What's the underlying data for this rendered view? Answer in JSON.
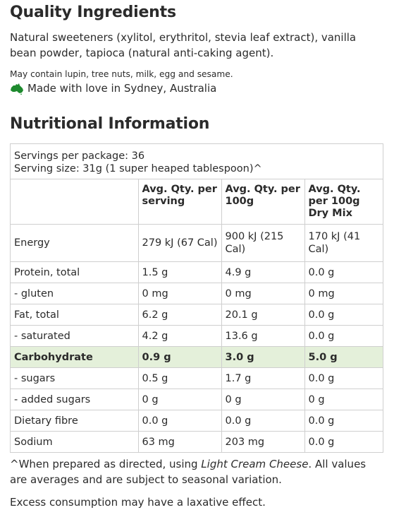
{
  "quality": {
    "title": "Quality Ingredients",
    "ingredients": "Natural sweeteners (xylitol, erythritol, stevia leaf extract), vanilla bean powder, tapioca (natural anti-caking agent).",
    "allergens": "May contain lupin, tree nuts, milk, egg and sesame.",
    "made_in": "Made with love in Sydney, Australia",
    "made_icon": "australia-map-icon",
    "accent_color": "#1e8a2e"
  },
  "nutrition": {
    "title": "Nutritional Information",
    "servings_per_package": "Servings per package: 36",
    "serving_size": "Serving size: 31g (1 super heaped tablespoon)^",
    "headers": [
      "",
      "Avg. Qty. per serving",
      "Avg. Qty. per 100g",
      "Avg. Qty. per 100g Dry Mix"
    ],
    "rows": [
      [
        "Energy",
        "279 kJ (67 Cal)",
        "900 kJ (215 Cal)",
        "170 kJ (41 Cal)"
      ],
      [
        "Protein, total",
        "1.5 g",
        "4.9 g",
        "0.0 g"
      ],
      [
        "- gluten",
        "0 mg",
        "0 mg",
        "0 mg"
      ],
      [
        "Fat, total",
        "6.2 g",
        "20.1 g",
        "0.0 g"
      ],
      [
        "- saturated",
        "4.2 g",
        "13.6 g",
        "0.0 g"
      ],
      [
        "Carbohydrate",
        "0.9 g",
        "3.0 g",
        "5.0 g"
      ],
      [
        "- sugars",
        "0.5 g",
        "1.7 g",
        "0.0 g"
      ],
      [
        "- added sugars",
        "0 g",
        "0 g",
        "0 g"
      ],
      [
        "Dietary fibre",
        "0.0 g",
        "0.0 g",
        "0.0 g"
      ],
      [
        "Sodium",
        "63 mg",
        "203 mg",
        "0.0 g"
      ]
    ],
    "highlight_row_color": "#e4f0da",
    "footnote_pre": "^When prepared as directed, using ",
    "footnote_em": "Light Cream Cheese",
    "footnote_post": ". All values are averages and are subject to seasonal variation.",
    "laxative": "Excess consumption may have a laxative effect."
  }
}
